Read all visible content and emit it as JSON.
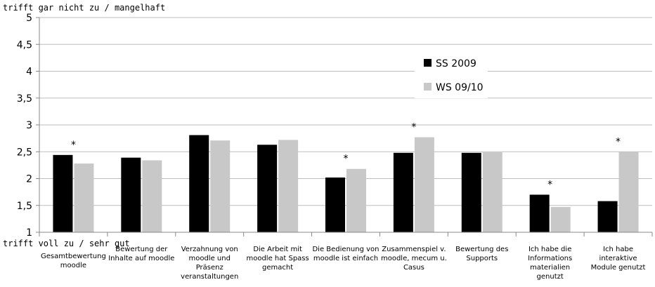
{
  "chart_data": {
    "type": "bar",
    "annotation_top": "trifft gar nicht zu / mangelhaft",
    "annotation_bottom": "trifft voll zu / sehr gut",
    "ylim": [
      1,
      5
    ],
    "yticks": [
      "1",
      "1,5",
      "2",
      "2,5",
      "3",
      "3,5",
      "4",
      "4,5",
      "5"
    ],
    "legend_position": "top-right (inside plot)",
    "categories": [
      "Gesamtbewertung\nmoodle",
      "Bewertung der\nInhalte auf moodle",
      "Verzahnung von\nmoodle und\nPräsenz\nveranstaltungen",
      "Die Arbeit mit\nmoodle hat Spass\ngemacht",
      "Die Bedienung von\nmoodle ist einfach",
      "Zusammenspiel v.\nmoodle, mecum u.\nCasus",
      "Bewertung des\nSupports",
      "Ich habe die\nInformations\nmaterialien genutzt",
      "Ich habe interaktive\nModule genutzt"
    ],
    "series": [
      {
        "name": "SS 2009",
        "color": "#000000",
        "values": [
          2.44,
          2.39,
          2.81,
          2.63,
          2.02,
          2.48,
          2.48,
          1.7,
          1.58
        ]
      },
      {
        "name": "WS 09/10",
        "color": "#c8c8c8",
        "values": [
          2.28,
          2.34,
          2.71,
          2.72,
          2.18,
          2.77,
          2.49,
          1.47,
          2.5
        ]
      }
    ],
    "significance_marker": "*",
    "significant_categories": [
      0,
      4,
      5,
      7,
      8
    ]
  }
}
